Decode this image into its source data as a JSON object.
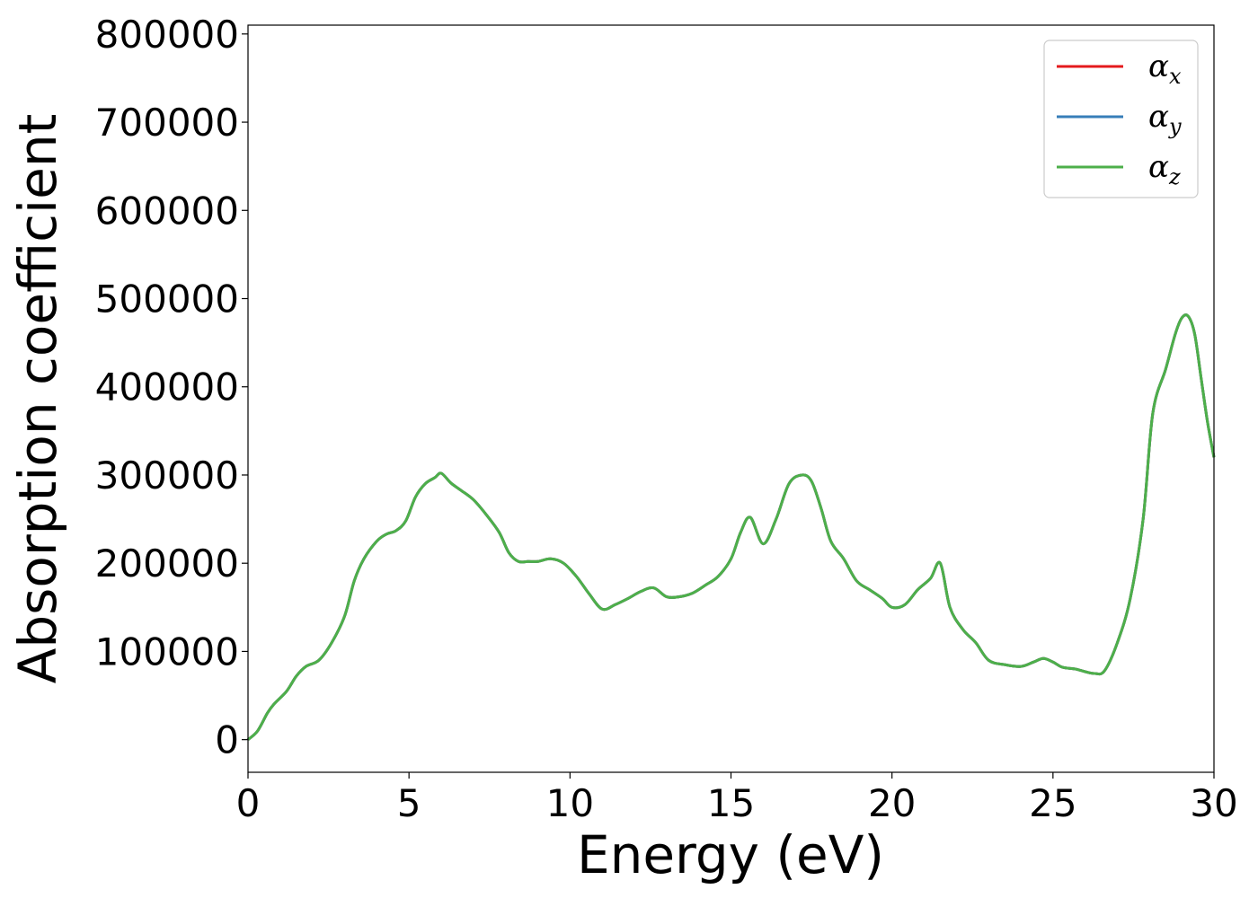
{
  "chart_data": {
    "type": "line",
    "title": "",
    "xlabel": "Energy (eV)",
    "ylabel": "Absorption coefficient",
    "xlim": [
      0,
      30
    ],
    "ylim": [
      -37000,
      810000
    ],
    "xticks": [
      0,
      5,
      10,
      15,
      20,
      25,
      30
    ],
    "yticks": [
      0,
      100000,
      200000,
      300000,
      400000,
      500000,
      600000,
      700000,
      800000
    ],
    "grid": false,
    "legend_position": "top-right",
    "series": [
      {
        "name": "α",
        "subscript": "x",
        "color": "#e41a1c",
        "x": [
          0,
          0.3,
          0.6,
          0.8,
          1.2,
          1.5,
          1.8,
          2.2,
          2.6,
          3.0,
          3.3,
          3.6,
          4.0,
          4.3,
          4.6,
          4.9,
          5.2,
          5.5,
          5.8,
          6.0,
          6.3,
          6.6,
          7.0,
          7.4,
          7.8,
          8.1,
          8.4,
          8.7,
          9.0,
          9.4,
          9.8,
          10.2,
          10.6,
          11.0,
          11.4,
          11.8,
          12.2,
          12.6,
          13.0,
          13.4,
          13.8,
          14.2,
          14.6,
          15.0,
          15.3,
          15.6,
          16.0,
          16.4,
          16.8,
          17.2,
          17.5,
          17.8,
          18.1,
          18.5,
          18.9,
          19.3,
          19.7,
          20.0,
          20.4,
          20.8,
          21.2,
          21.5,
          21.8,
          22.2,
          22.6,
          23.0,
          23.5,
          24.0,
          24.4,
          24.7,
          25.0,
          25.3,
          25.7,
          26.0,
          26.3,
          26.6,
          27.0,
          27.4,
          27.8,
          28.1,
          28.5,
          28.8,
          29.0,
          29.2,
          29.4,
          29.6,
          29.8,
          30.0
        ],
        "values": [
          0,
          10000,
          30000,
          40000,
          55000,
          72000,
          83000,
          90000,
          110000,
          140000,
          180000,
          205000,
          225000,
          233000,
          237000,
          248000,
          275000,
          290000,
          297000,
          302000,
          291000,
          283000,
          272000,
          255000,
          235000,
          212000,
          202000,
          202000,
          202000,
          205000,
          200000,
          185000,
          165000,
          148000,
          153000,
          160000,
          168000,
          172000,
          162000,
          162000,
          166000,
          175000,
          185000,
          205000,
          235000,
          252000,
          222000,
          250000,
          290000,
          300000,
          293000,
          262000,
          225000,
          205000,
          180000,
          170000,
          160000,
          150000,
          153000,
          170000,
          183000,
          200000,
          150000,
          125000,
          110000,
          90000,
          85000,
          83000,
          88000,
          92000,
          88000,
          82000,
          80000,
          77000,
          75000,
          78000,
          110000,
          160000,
          250000,
          370000,
          420000,
          460000,
          478000,
          480000,
          460000,
          410000,
          360000,
          320000
        ]
      },
      {
        "name": "α",
        "subscript": "y",
        "color": "#377eb8",
        "x": [
          0,
          0.3,
          0.6,
          0.8,
          1.2,
          1.5,
          1.8,
          2.2,
          2.6,
          3.0,
          3.3,
          3.6,
          4.0,
          4.3,
          4.6,
          4.9,
          5.2,
          5.5,
          5.8,
          6.0,
          6.3,
          6.6,
          7.0,
          7.4,
          7.8,
          8.1,
          8.4,
          8.7,
          9.0,
          9.4,
          9.8,
          10.2,
          10.6,
          11.0,
          11.4,
          11.8,
          12.2,
          12.6,
          13.0,
          13.4,
          13.8,
          14.2,
          14.6,
          15.0,
          15.3,
          15.6,
          16.0,
          16.4,
          16.8,
          17.2,
          17.5,
          17.8,
          18.1,
          18.5,
          18.9,
          19.3,
          19.7,
          20.0,
          20.4,
          20.8,
          21.2,
          21.5,
          21.8,
          22.2,
          22.6,
          23.0,
          23.5,
          24.0,
          24.4,
          24.7,
          25.0,
          25.3,
          25.7,
          26.0,
          26.3,
          26.6,
          27.0,
          27.4,
          27.8,
          28.1,
          28.5,
          28.8,
          29.0,
          29.2,
          29.4,
          29.6,
          29.8,
          30.0
        ],
        "values": [
          0,
          10000,
          30000,
          40000,
          55000,
          72000,
          83000,
          90000,
          110000,
          140000,
          180000,
          205000,
          225000,
          233000,
          237000,
          248000,
          275000,
          290000,
          297000,
          302000,
          291000,
          283000,
          272000,
          255000,
          235000,
          212000,
          202000,
          202000,
          202000,
          205000,
          200000,
          185000,
          165000,
          148000,
          153000,
          160000,
          168000,
          172000,
          162000,
          162000,
          166000,
          175000,
          185000,
          205000,
          235000,
          252000,
          222000,
          250000,
          290000,
          300000,
          293000,
          262000,
          225000,
          205000,
          180000,
          170000,
          160000,
          150000,
          153000,
          170000,
          183000,
          200000,
          150000,
          125000,
          110000,
          90000,
          85000,
          83000,
          88000,
          92000,
          88000,
          82000,
          80000,
          77000,
          75000,
          78000,
          110000,
          160000,
          250000,
          370000,
          420000,
          460000,
          478000,
          480000,
          460000,
          410000,
          360000,
          320000
        ]
      },
      {
        "name": "α",
        "subscript": "z",
        "color": "#4daf4a",
        "x": [
          0,
          0.3,
          0.6,
          0.8,
          1.2,
          1.5,
          1.8,
          2.2,
          2.6,
          3.0,
          3.3,
          3.6,
          4.0,
          4.3,
          4.6,
          4.9,
          5.2,
          5.5,
          5.8,
          6.0,
          6.3,
          6.6,
          7.0,
          7.4,
          7.8,
          8.1,
          8.4,
          8.7,
          9.0,
          9.4,
          9.8,
          10.2,
          10.6,
          11.0,
          11.4,
          11.8,
          12.2,
          12.6,
          13.0,
          13.4,
          13.8,
          14.2,
          14.6,
          15.0,
          15.3,
          15.6,
          16.0,
          16.4,
          16.8,
          17.2,
          17.5,
          17.8,
          18.1,
          18.5,
          18.9,
          19.3,
          19.7,
          20.0,
          20.4,
          20.8,
          21.2,
          21.5,
          21.8,
          22.2,
          22.6,
          23.0,
          23.5,
          24.0,
          24.4,
          24.7,
          25.0,
          25.3,
          25.7,
          26.0,
          26.3,
          26.6,
          27.0,
          27.4,
          27.8,
          28.1,
          28.5,
          28.8,
          29.0,
          29.2,
          29.4,
          29.6,
          29.8,
          30.0
        ],
        "values": [
          0,
          10000,
          30000,
          40000,
          55000,
          72000,
          83000,
          90000,
          110000,
          140000,
          180000,
          205000,
          225000,
          233000,
          237000,
          248000,
          275000,
          290000,
          297000,
          302000,
          291000,
          283000,
          272000,
          255000,
          235000,
          212000,
          202000,
          202000,
          202000,
          205000,
          200000,
          185000,
          165000,
          148000,
          153000,
          160000,
          168000,
          172000,
          162000,
          162000,
          166000,
          175000,
          185000,
          205000,
          235000,
          252000,
          222000,
          250000,
          290000,
          300000,
          293000,
          262000,
          225000,
          205000,
          180000,
          170000,
          160000,
          150000,
          153000,
          170000,
          183000,
          200000,
          150000,
          125000,
          110000,
          90000,
          85000,
          83000,
          88000,
          92000,
          88000,
          82000,
          80000,
          77000,
          75000,
          78000,
          110000,
          160000,
          250000,
          370000,
          420000,
          460000,
          478000,
          480000,
          460000,
          410000,
          360000,
          320000
        ]
      }
    ]
  }
}
